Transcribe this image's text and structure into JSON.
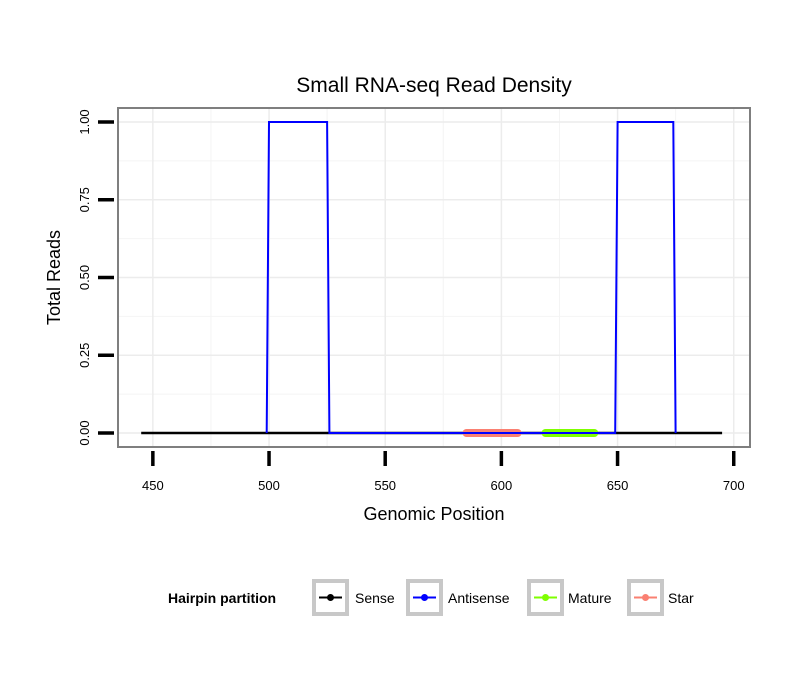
{
  "chart_data": {
    "type": "line",
    "title": "Small RNA-seq Read Density",
    "xlabel": "Genomic Position",
    "ylabel": "Total Reads",
    "xlim": [
      435,
      707
    ],
    "ylim": [
      -0.045,
      1.045
    ],
    "x_ticks": [
      450,
      500,
      550,
      600,
      650,
      700
    ],
    "x_tick_labels": [
      "450",
      "500",
      "550",
      "600",
      "650",
      "700"
    ],
    "y_ticks": [
      0,
      0.25,
      0.5,
      0.75,
      1.0
    ],
    "y_tick_labels": [
      "0.00",
      "0.25",
      "0.50",
      "0.75",
      "1.00"
    ],
    "grid": true,
    "legend": {
      "title": "Hairpin partition",
      "position": "bottom",
      "entries": [
        "Sense",
        "Antisense",
        "Mature",
        "Star"
      ]
    },
    "series": [
      {
        "name": "Sense",
        "color": "#000000",
        "x": [
          445,
          695
        ],
        "y": [
          0,
          0
        ]
      },
      {
        "name": "Antisense",
        "color": "#0000FF",
        "x": [
          499,
          500,
          525,
          526,
          649,
          650,
          674,
          675
        ],
        "y": [
          0,
          1,
          1,
          0,
          0,
          1,
          1,
          0
        ]
      },
      {
        "name": "Mature",
        "color": "#7FFF00",
        "x": [
          619,
          640
        ],
        "y": [
          0,
          0
        ]
      },
      {
        "name": "Star",
        "color": "#FA8072",
        "x": [
          585,
          607
        ],
        "y": [
          0,
          0
        ]
      }
    ]
  }
}
